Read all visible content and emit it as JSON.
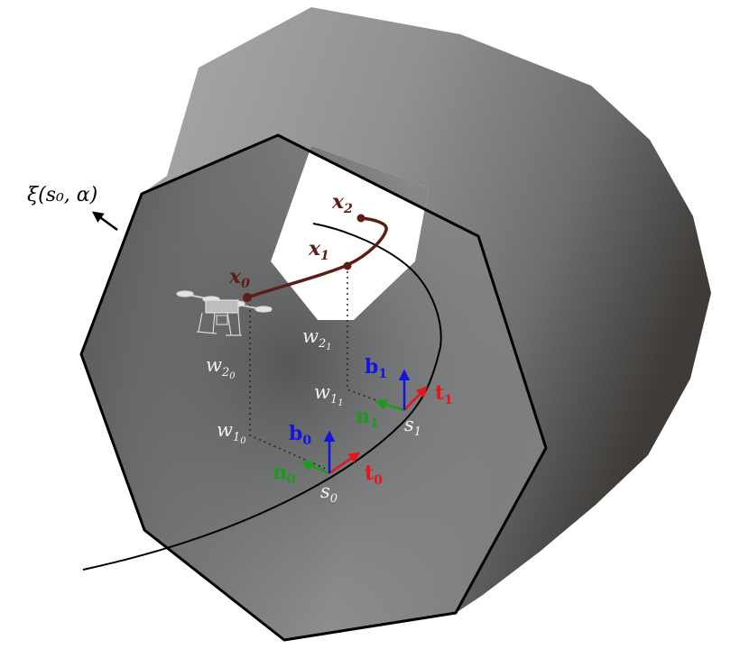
{
  "labels": {
    "tube_param": "ξ(s₀, α)",
    "waypoints": {
      "x0": "x",
      "x0_sub": "0",
      "x1": "x",
      "x1_sub": "1",
      "x2": "x",
      "x2_sub": "2"
    },
    "frame0": {
      "t": "t",
      "t_sub": "0",
      "n": "n",
      "n_sub": "0",
      "b": "b",
      "b_sub": "0",
      "s": "s",
      "s_sub": "0"
    },
    "frame1": {
      "t": "t",
      "t_sub": "1",
      "n": "n",
      "n_sub": "1",
      "b": "b",
      "b_sub": "1",
      "s": "s",
      "s_sub": "1"
    },
    "offsets": {
      "w2_0": "w",
      "w2_0_sub": "2",
      "w2_0_subsub": "0",
      "w1_0": "w",
      "w1_0_sub": "1",
      "w1_0_subsub": "0",
      "w2_1": "w",
      "w2_1_sub": "2",
      "w2_1_subsub": "1",
      "w1_1": "w",
      "w1_1_sub": "1",
      "w1_1_subsub": "1"
    }
  },
  "colors": {
    "tangent": "#e8141c",
    "normal": "#1d9a1d",
    "binormal": "#1414e0",
    "trajectory": "#5a1e16",
    "offset_text": "#f2f2f2"
  },
  "icons": {
    "drone": "quadrotor-drone-icon"
  }
}
